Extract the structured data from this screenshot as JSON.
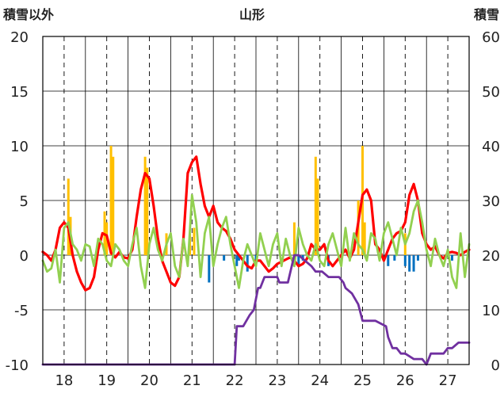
{
  "chart_data": {
    "type": "line",
    "title": "山形",
    "left_axis_label": "積雪以外",
    "right_axis_label": "積雪",
    "x_ticks": [
      "18",
      "19",
      "20",
      "21",
      "22",
      "23",
      "24",
      "25",
      "26",
      "27"
    ],
    "left_ylim": [
      -10,
      20
    ],
    "left_ticks": [
      "20",
      "15",
      "10",
      "5",
      "0",
      "-5",
      "-10"
    ],
    "right_ylim": [
      0,
      60
    ],
    "right_ticks": [
      "60",
      "50",
      "40",
      "30",
      "20",
      "10",
      "0"
    ],
    "xlim": [
      17.5,
      27.5
    ],
    "grid": true,
    "colors": {
      "red": "#ff0000",
      "green": "#92d050",
      "purple": "#7030a0",
      "orange_bars": "#ffc000",
      "blue_bars": "#0070c0",
      "grid": "#000000"
    },
    "series": [
      {
        "color": "red",
        "axis": "left",
        "x": [
          17.5,
          17.6,
          17.7,
          17.8,
          17.9,
          18.0,
          18.1,
          18.2,
          18.3,
          18.4,
          18.5,
          18.6,
          18.7,
          18.8,
          18.9,
          19.0,
          19.1,
          19.2,
          19.3,
          19.4,
          19.5,
          19.6,
          19.7,
          19.8,
          19.9,
          20.0,
          20.1,
          20.2,
          20.3,
          20.4,
          20.5,
          20.6,
          20.7,
          20.8,
          20.9,
          21.0,
          21.1,
          21.2,
          21.3,
          21.4,
          21.5,
          21.6,
          21.7,
          21.8,
          21.9,
          22.0,
          22.1,
          22.2,
          22.3,
          22.4,
          22.5,
          22.6,
          22.7,
          22.8,
          22.9,
          23.0,
          23.1,
          23.2,
          23.3,
          23.4,
          23.5,
          23.6,
          23.7,
          23.8,
          23.9,
          24.0,
          24.1,
          24.2,
          24.3,
          24.4,
          24.5,
          24.6,
          24.7,
          24.8,
          24.9,
          25.0,
          25.1,
          25.2,
          25.3,
          25.4,
          25.5,
          25.6,
          25.7,
          25.8,
          25.9,
          26.0,
          26.1,
          26.2,
          26.3,
          26.4,
          26.5,
          26.6,
          26.7,
          26.8,
          26.9,
          27.0,
          27.1,
          27.2,
          27.3,
          27.4,
          27.5
        ],
        "y": [
          0.3,
          0,
          -0.5,
          0.5,
          2.5,
          3,
          2.5,
          0,
          -1.5,
          -2.5,
          -3.2,
          -3,
          -2,
          0.5,
          2,
          1.8,
          0.2,
          -0.2,
          0.3,
          -0.2,
          -0.3,
          0.5,
          3.5,
          6,
          7.5,
          7,
          4.5,
          1.5,
          -0.5,
          -1.5,
          -2.5,
          -2.8,
          -2,
          1.5,
          7.5,
          8.5,
          9,
          6.5,
          4.5,
          3.5,
          4.5,
          3,
          2.5,
          2.2,
          1.5,
          0.5,
          0,
          -0.5,
          -1,
          -1.2,
          -0.5,
          -0.5,
          -1,
          -1.5,
          -1.2,
          -0.8,
          -0.6,
          -0.4,
          -0.2,
          -0.5,
          -1,
          -0.8,
          -0.3,
          1,
          0.5,
          0.5,
          1,
          -0.5,
          -1,
          -0.5,
          0,
          0.5,
          -0.3,
          0.5,
          3,
          5.5,
          6,
          5,
          1,
          0.5,
          -0.5,
          0.5,
          1.5,
          2,
          2.2,
          3,
          5.5,
          6.5,
          5,
          2,
          1,
          0.5,
          0.8,
          0,
          -0.3,
          0.2,
          0.3,
          0.2,
          0,
          0.3,
          0.5
        ]
      },
      {
        "color": "green",
        "axis": "left",
        "x": [
          17.5,
          17.6,
          17.7,
          17.8,
          17.9,
          18.0,
          18.1,
          18.2,
          18.3,
          18.4,
          18.5,
          18.6,
          18.7,
          18.8,
          18.9,
          19.0,
          19.1,
          19.2,
          19.3,
          19.4,
          19.5,
          19.6,
          19.7,
          19.8,
          19.9,
          20.0,
          20.1,
          20.2,
          20.3,
          20.4,
          20.5,
          20.6,
          20.7,
          20.8,
          20.9,
          21.0,
          21.1,
          21.2,
          21.3,
          21.4,
          21.5,
          21.6,
          21.7,
          21.8,
          21.9,
          22.0,
          22.1,
          22.2,
          22.3,
          22.4,
          22.5,
          22.6,
          22.7,
          22.8,
          22.9,
          23.0,
          23.1,
          23.2,
          23.3,
          23.4,
          23.5,
          23.6,
          23.7,
          23.8,
          23.9,
          24.0,
          24.1,
          24.2,
          24.3,
          24.4,
          24.5,
          24.6,
          24.7,
          24.8,
          24.9,
          25.0,
          25.1,
          25.2,
          25.3,
          25.4,
          25.5,
          25.6,
          25.7,
          25.8,
          25.9,
          26.0,
          26.1,
          26.2,
          26.3,
          26.4,
          26.5,
          26.6,
          26.7,
          26.8,
          26.9,
          27.0,
          27.1,
          27.2,
          27.3,
          27.4,
          27.5
        ],
        "y": [
          -0.5,
          -1.5,
          -1.2,
          0.5,
          -2.5,
          2.5,
          3,
          1,
          0.5,
          -0.5,
          1,
          0.8,
          -1,
          1.5,
          1,
          -0.5,
          -1,
          1,
          0.5,
          -0.5,
          -1,
          1,
          2.5,
          -1,
          -3,
          1,
          2.5,
          0.5,
          -0.5,
          1,
          2,
          -1,
          -2,
          1.5,
          -1,
          5.5,
          3,
          -2,
          2,
          3.5,
          -1,
          1,
          2.5,
          3.5,
          1,
          -1,
          -3,
          -0.5,
          1,
          0,
          -1,
          2,
          0.5,
          -1,
          1,
          2,
          -1,
          1.5,
          0,
          -1,
          2.5,
          1,
          0,
          -0.5,
          1,
          -0.5,
          -1,
          1,
          2,
          0.5,
          -1,
          2.5,
          -0.5,
          2,
          1,
          0.5,
          -0.5,
          2,
          1.5,
          -0.5,
          2,
          3,
          1.5,
          0,
          2.5,
          1,
          2,
          4,
          5,
          3,
          0.5,
          -1,
          1.5,
          0,
          -1,
          0.5,
          -2,
          -3,
          2,
          -2,
          1
        ]
      },
      {
        "color": "purple",
        "axis": "right",
        "x": [
          17.5,
          22.0,
          22.05,
          22.2,
          22.35,
          22.45,
          22.55,
          22.6,
          22.7,
          23.0,
          23.05,
          23.25,
          23.4,
          23.5,
          23.8,
          23.9,
          24.05,
          24.2,
          24.45,
          24.55,
          24.6,
          24.75,
          24.9,
          25.0,
          25.1,
          25.2,
          25.3,
          25.55,
          25.6,
          25.7,
          25.8,
          25.9,
          26.0,
          26.2,
          26.4,
          26.5,
          26.6,
          26.8,
          26.9,
          27.0,
          27.1,
          27.25,
          27.3,
          27.5
        ],
        "y": [
          0,
          0,
          7,
          7,
          9,
          10,
          14,
          14,
          16,
          16,
          15,
          15,
          20,
          20,
          18,
          17,
          17,
          16,
          16,
          15,
          14,
          13,
          11,
          8,
          8,
          8,
          8,
          7,
          5,
          3,
          3,
          2,
          2,
          1,
          1,
          0,
          2,
          2,
          2,
          3,
          3,
          4,
          4,
          4
        ]
      }
    ],
    "bars_orange": [
      {
        "x": 18.1,
        "y": 7
      },
      {
        "x": 18.15,
        "y": 3.5
      },
      {
        "x": 18.95,
        "y": 4
      },
      {
        "x": 19.0,
        "y": 3
      },
      {
        "x": 19.1,
        "y": 10
      },
      {
        "x": 19.15,
        "y": 9
      },
      {
        "x": 19.9,
        "y": 9
      },
      {
        "x": 19.95,
        "y": 8
      },
      {
        "x": 20.4,
        "y": 2
      },
      {
        "x": 20.95,
        "y": 2
      },
      {
        "x": 21.05,
        "y": 2.5
      },
      {
        "x": 23.4,
        "y": 3
      },
      {
        "x": 23.9,
        "y": 9
      },
      {
        "x": 23.95,
        "y": 7
      },
      {
        "x": 24.9,
        "y": 5
      },
      {
        "x": 25.0,
        "y": 10
      },
      {
        "x": 25.05,
        "y": 3
      },
      {
        "x": 26.0,
        "y": 2
      }
    ],
    "bars_blue": [
      {
        "x": 21.4,
        "y": -2.5
      },
      {
        "x": 21.75,
        "y": -0.5
      },
      {
        "x": 22.05,
        "y": -1
      },
      {
        "x": 22.1,
        "y": -0.5
      },
      {
        "x": 22.3,
        "y": -1.5
      },
      {
        "x": 22.5,
        "y": -0.5
      },
      {
        "x": 23.5,
        "y": -1
      },
      {
        "x": 23.6,
        "y": -0.5
      },
      {
        "x": 24.2,
        "y": -1
      },
      {
        "x": 25.6,
        "y": -1
      },
      {
        "x": 25.75,
        "y": -0.5
      },
      {
        "x": 26.0,
        "y": -1
      },
      {
        "x": 26.1,
        "y": -1.5
      },
      {
        "x": 26.2,
        "y": -1.5
      },
      {
        "x": 26.3,
        "y": -0.5
      },
      {
        "x": 27.1,
        "y": -0.5
      }
    ]
  }
}
